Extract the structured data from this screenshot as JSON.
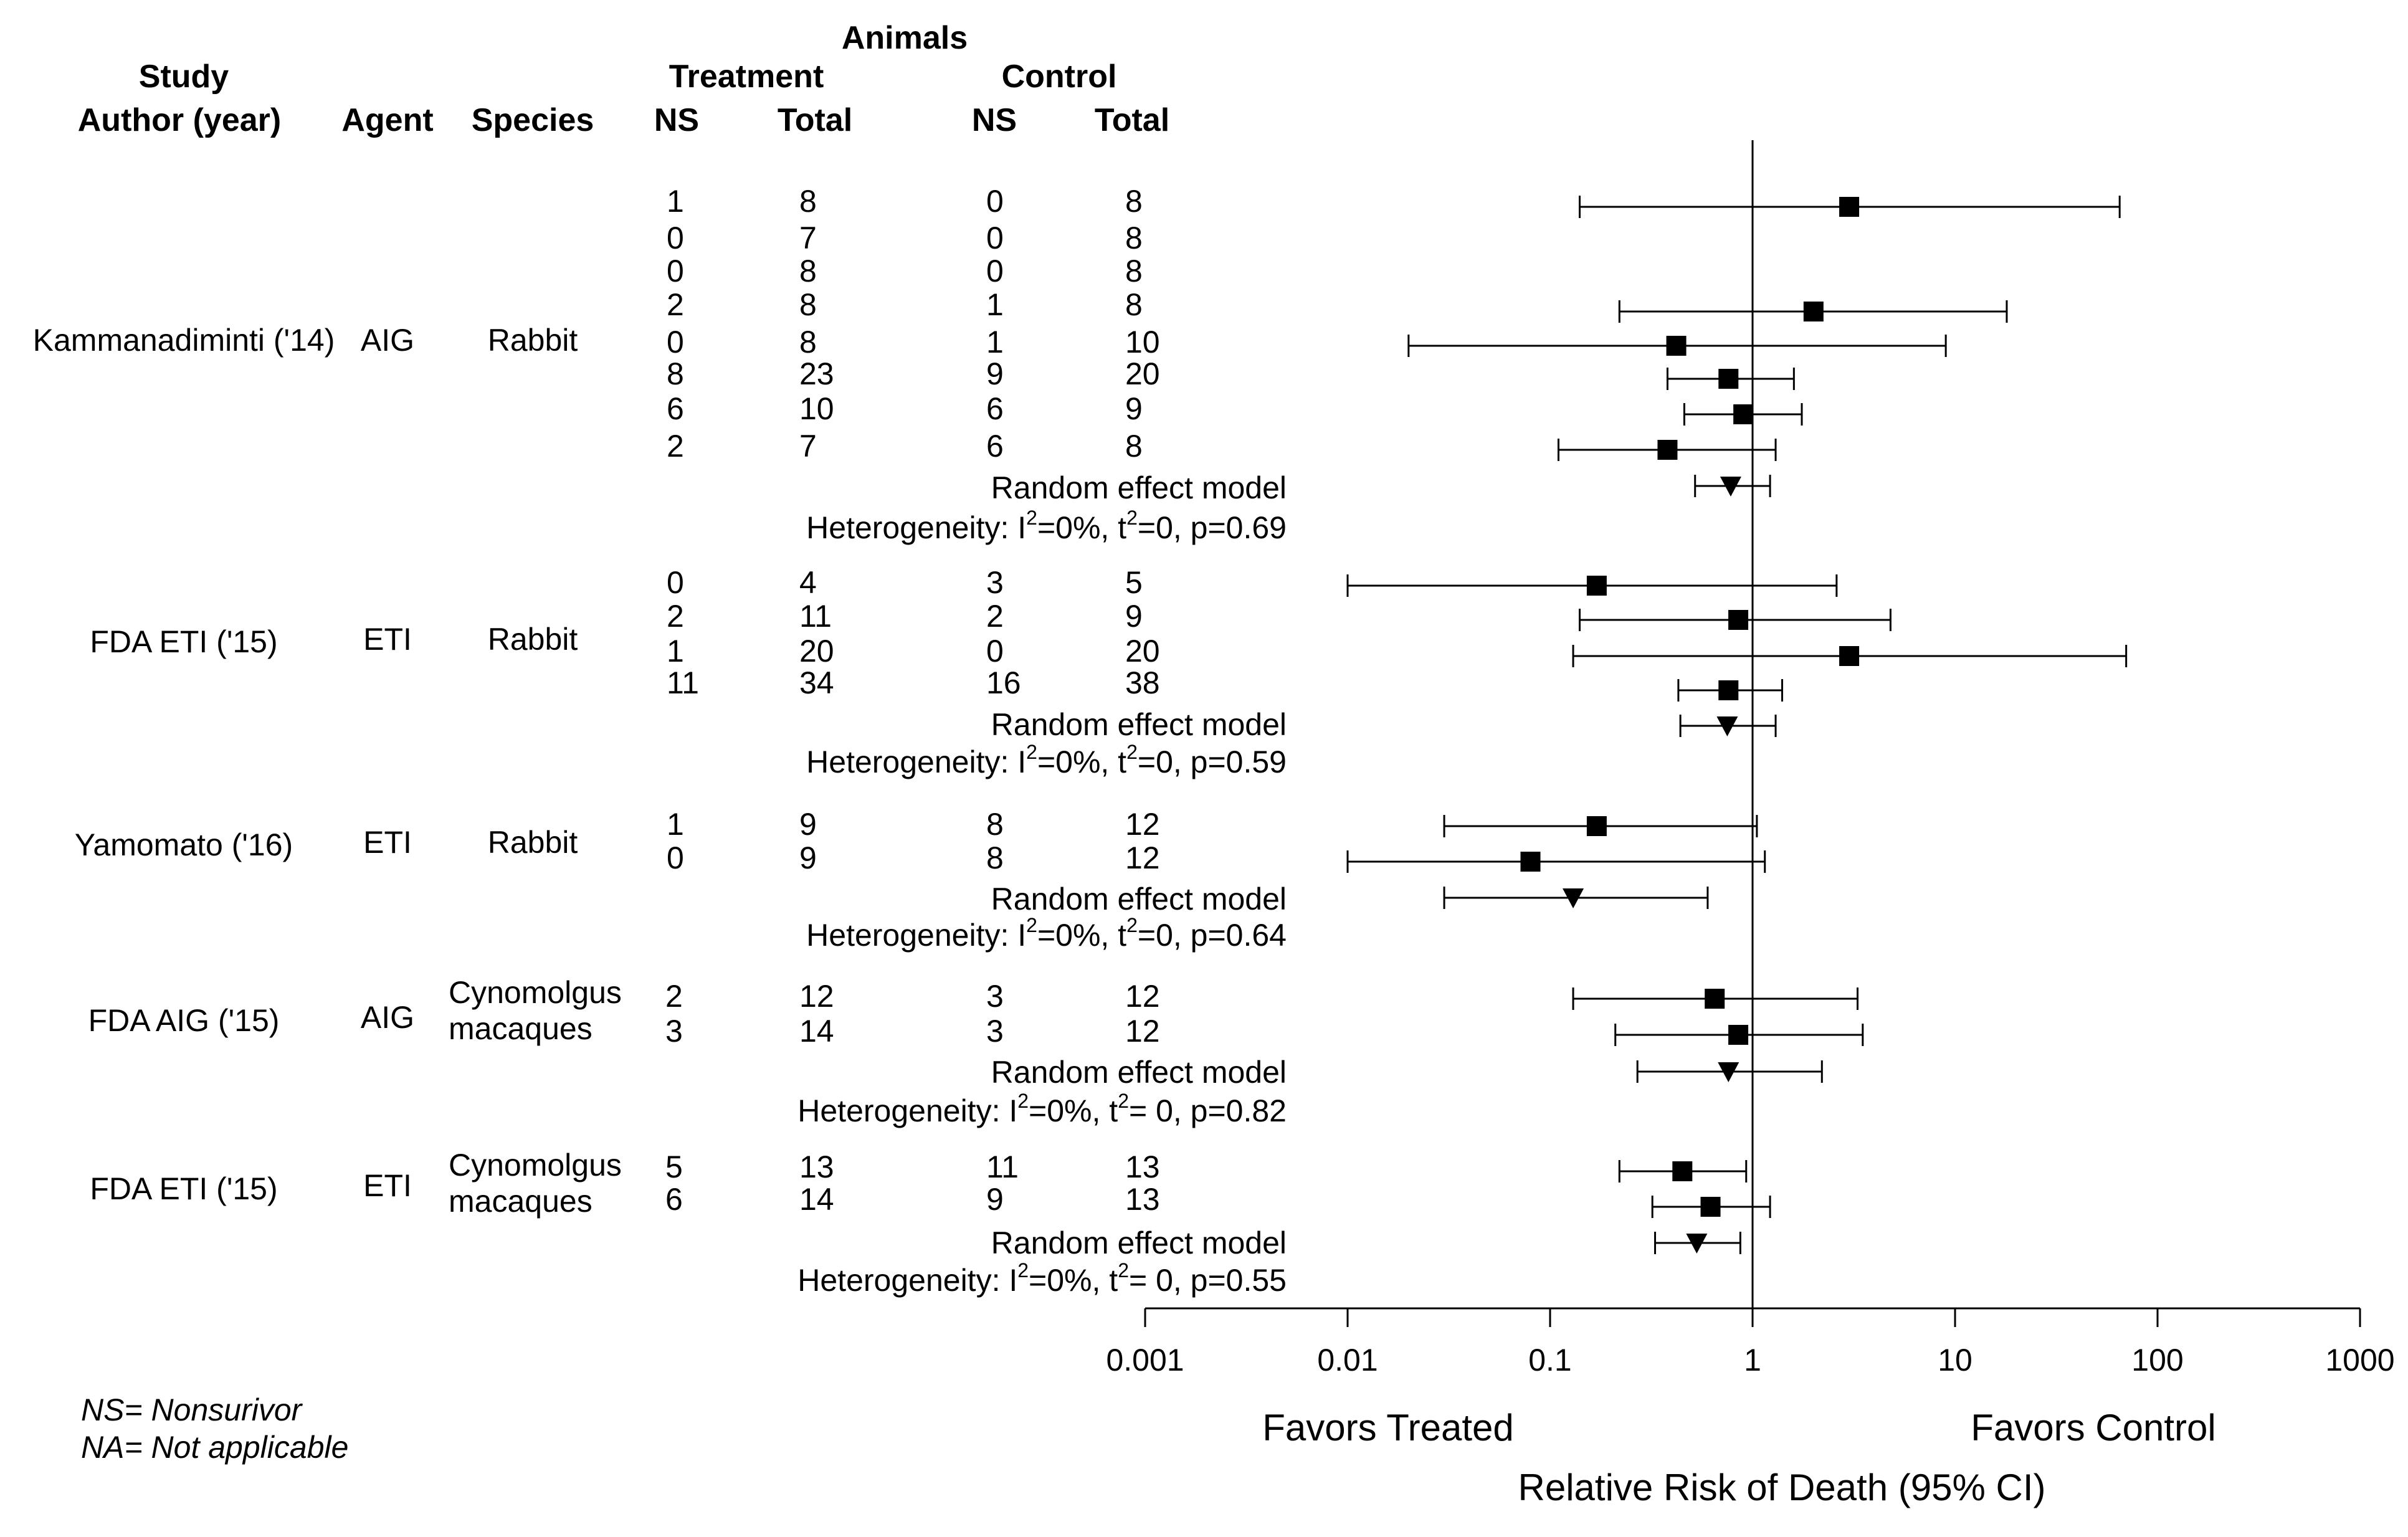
{
  "headers": {
    "animals": "Animals",
    "treatment": "Treatment",
    "control": "Control",
    "study": "Study",
    "author_year": "Author (year)",
    "agent": "Agent",
    "species": "Species",
    "ns_t": "NS",
    "total_t": "Total",
    "ns_c": "NS",
    "total_c": "Total"
  },
  "groups": [
    {
      "study": "Kammanadiminti ('14)",
      "agent": "AIG",
      "species": [
        "Rabbit"
      ],
      "rows": [
        [
          "1",
          "8",
          "0",
          "8"
        ],
        [
          "0",
          "7",
          "0",
          "8"
        ],
        [
          "0",
          "8",
          "0",
          "8"
        ],
        [
          "2",
          "8",
          "1",
          "8"
        ],
        [
          "0",
          "8",
          "1",
          "10"
        ],
        [
          "8",
          "23",
          "9",
          "20"
        ],
        [
          "6",
          "10",
          "6",
          "9"
        ],
        [
          "2",
          "7",
          "6",
          "8"
        ]
      ],
      "model": "Random effect model",
      "het_prefix": "Heterogeneity: I",
      "het_i2": "=0%, t",
      "het_rest": "=0, p=0.69",
      "sup": "2"
    },
    {
      "study": "FDA ETI ('15)",
      "agent": "ETI",
      "species": [
        "Rabbit"
      ],
      "rows": [
        [
          "0",
          "4",
          "3",
          "5"
        ],
        [
          "2",
          "11",
          "2",
          "9"
        ],
        [
          "1",
          "20",
          "0",
          "20"
        ],
        [
          "11",
          "34",
          "16",
          "38"
        ]
      ],
      "model": "Random effect model",
      "het_prefix": "Heterogeneity: I",
      "het_i2": "=0%, t",
      "het_rest": "=0, p=0.59",
      "sup": "2"
    },
    {
      "study": "Yamomato ('16)",
      "agent": "ETI",
      "species": [
        "Rabbit"
      ],
      "rows": [
        [
          "1",
          "9",
          "8",
          "12"
        ],
        [
          "0",
          "9",
          "8",
          "12"
        ]
      ],
      "model": "Random effect model",
      "het_prefix": "Heterogeneity: I",
      "het_i2": "=0%, t",
      "het_rest": "=0, p=0.64",
      "sup": "2"
    },
    {
      "study": "FDA AIG ('15)",
      "agent": "AIG",
      "species": [
        "Cynomolgus",
        "macaques"
      ],
      "rows": [
        [
          "2",
          "12",
          "3",
          "12"
        ],
        [
          "3",
          "14",
          "3",
          "12"
        ]
      ],
      "model": "Random effect model",
      "het_prefix": "Heterogeneity: I",
      "het_i2": "=0%, t",
      "het_rest": "= 0, p=0.82",
      "sup": "2"
    },
    {
      "study": "FDA ETI ('15)",
      "agent": "ETI",
      "species": [
        "Cynomolgus",
        "macaques"
      ],
      "rows": [
        [
          "5",
          "13",
          "11",
          "13"
        ],
        [
          "6",
          "14",
          "9",
          "13"
        ]
      ],
      "model": "Random effect model",
      "het_prefix": "Heterogeneity: I",
      "het_i2": "=0%, t",
      "het_rest": "= 0, p=0.55",
      "sup": "2"
    }
  ],
  "footnotes": {
    "ns": "NS= Nonsurivor",
    "na": "NA= Not applicable"
  },
  "chart_data": {
    "type": "forest",
    "x_scale": "log",
    "xlim": [
      0.001,
      1000
    ],
    "ticks": [
      0.001,
      0.01,
      0.1,
      1,
      10,
      100,
      1000
    ],
    "tick_labels": [
      "0.001",
      "0.01",
      "0.1",
      "1",
      "10",
      "100",
      "1000"
    ],
    "reference_line": 1,
    "xlabel": "Relative Risk of Death (95% CI)",
    "left_label": "Favors Treated",
    "right_label": "Favors Control",
    "estimates": [
      {
        "kind": "study",
        "rr": 3.0,
        "lo": 0.14,
        "hi": 65
      },
      {
        "kind": "study",
        "rr": 2.0,
        "lo": 0.22,
        "hi": 18
      },
      {
        "kind": "study",
        "rr": 0.42,
        "lo": 0.02,
        "hi": 9
      },
      {
        "kind": "study",
        "rr": 0.76,
        "lo": 0.38,
        "hi": 1.6
      },
      {
        "kind": "study",
        "rr": 0.9,
        "lo": 0.46,
        "hi": 1.75
      },
      {
        "kind": "study",
        "rr": 0.38,
        "lo": 0.11,
        "hi": 1.3
      },
      {
        "kind": "pooled",
        "rr": 0.78,
        "lo": 0.52,
        "hi": 1.22
      },
      {
        "kind": "study",
        "rr": 0.17,
        "lo": 0.01,
        "hi": 2.6
      },
      {
        "kind": "study",
        "rr": 0.85,
        "lo": 0.14,
        "hi": 4.8
      },
      {
        "kind": "study",
        "rr": 3.0,
        "lo": 0.13,
        "hi": 70
      },
      {
        "kind": "study",
        "rr": 0.76,
        "lo": 0.43,
        "hi": 1.4
      },
      {
        "kind": "pooled",
        "rr": 0.75,
        "lo": 0.44,
        "hi": 1.3
      },
      {
        "kind": "study",
        "rr": 0.17,
        "lo": 0.03,
        "hi": 1.05
      },
      {
        "kind": "study",
        "rr": 0.08,
        "lo": 0.01,
        "hi": 1.15
      },
      {
        "kind": "pooled",
        "rr": 0.13,
        "lo": 0.03,
        "hi": 0.6
      },
      {
        "kind": "study",
        "rr": 0.65,
        "lo": 0.13,
        "hi": 3.3
      },
      {
        "kind": "study",
        "rr": 0.85,
        "lo": 0.21,
        "hi": 3.5
      },
      {
        "kind": "pooled",
        "rr": 0.76,
        "lo": 0.27,
        "hi": 2.2
      },
      {
        "kind": "study",
        "rr": 0.45,
        "lo": 0.22,
        "hi": 0.93
      },
      {
        "kind": "study",
        "rr": 0.62,
        "lo": 0.32,
        "hi": 1.22
      },
      {
        "kind": "pooled",
        "rr": 0.53,
        "lo": 0.33,
        "hi": 0.87
      }
    ]
  }
}
